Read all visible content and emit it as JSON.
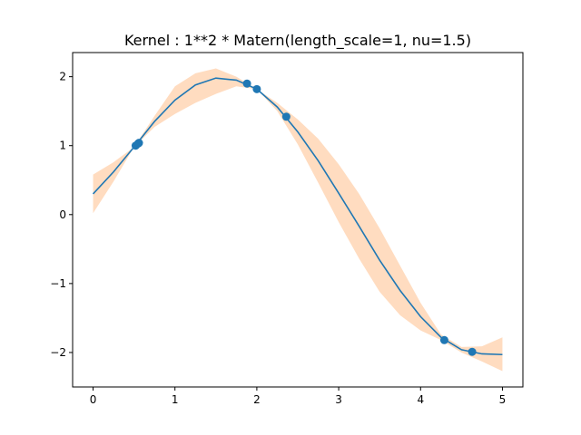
{
  "chart_data": {
    "type": "line",
    "title": "Kernel : 1**2 * Matern(length_scale=1, nu=1.5)",
    "xlabel": "",
    "ylabel": "",
    "xlim": [
      -0.25,
      5.25
    ],
    "ylim": [
      -2.5,
      2.35
    ],
    "xticks": [
      0,
      1,
      2,
      3,
      4,
      5
    ],
    "yticks": [
      -2,
      -1,
      0,
      1,
      2
    ],
    "ytick_labels": [
      "−2",
      "−1",
      "0",
      "1",
      "2"
    ],
    "grid": false,
    "colors": {
      "mean": "#1f77b4",
      "band": "#ffdcc0",
      "points": "#1f77b4"
    },
    "series": [
      {
        "type": "line",
        "x": [
          0,
          0.25,
          0.5,
          0.75,
          1.0,
          1.25,
          1.5,
          1.75,
          2.0,
          2.25,
          2.5,
          2.75,
          3.0,
          3.25,
          3.5,
          3.75,
          4.0,
          4.25,
          4.5,
          4.75,
          5.0
        ],
        "values": [
          0.3,
          0.62,
          0.98,
          1.35,
          1.66,
          1.88,
          1.98,
          1.95,
          1.82,
          1.56,
          1.2,
          0.78,
          0.31,
          -0.17,
          -0.66,
          -1.1,
          -1.48,
          -1.78,
          -1.96,
          -2.02,
          -2.03
        ]
      },
      {
        "type": "band",
        "x": [
          0,
          0.25,
          0.5,
          0.75,
          1.0,
          1.25,
          1.5,
          1.75,
          2.0,
          2.25,
          2.5,
          2.75,
          3.0,
          3.25,
          3.5,
          3.75,
          4.0,
          4.25,
          4.5,
          4.75,
          5.0
        ],
        "lower": [
          0.02,
          0.48,
          0.98,
          1.27,
          1.46,
          1.62,
          1.75,
          1.86,
          1.82,
          1.5,
          1.02,
          0.46,
          -0.11,
          -0.64,
          -1.12,
          -1.46,
          -1.68,
          -1.82,
          -2.0,
          -2.13,
          -2.27
        ],
        "upper": [
          0.58,
          0.76,
          0.98,
          1.43,
          1.86,
          2.05,
          2.12,
          2.0,
          1.82,
          1.62,
          1.38,
          1.1,
          0.73,
          0.3,
          -0.2,
          -0.74,
          -1.28,
          -1.74,
          -1.92,
          -1.91,
          -1.78
        ]
      },
      {
        "type": "scatter",
        "x": [
          0.52,
          0.55,
          0.56,
          1.88,
          2.0,
          2.36,
          4.29,
          4.63
        ],
        "values": [
          1.0,
          1.03,
          1.04,
          1.9,
          1.82,
          1.42,
          -1.82,
          -1.99
        ]
      }
    ]
  }
}
